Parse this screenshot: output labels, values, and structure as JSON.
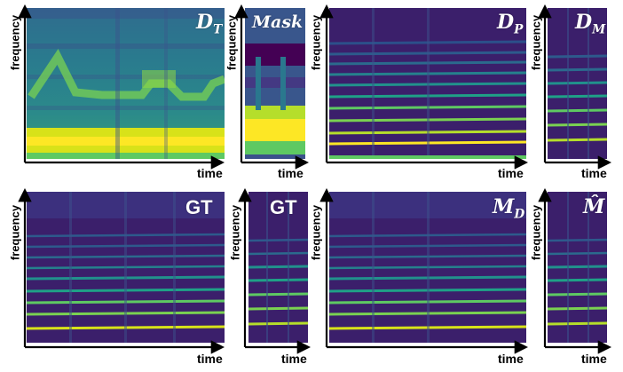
{
  "colors": {
    "background": "#440154",
    "dark": "#3b1f6b",
    "blue": "#33638d",
    "teal": "#21918c",
    "green": "#5ec962",
    "yellow": "#fde725"
  },
  "axis_labels": {
    "y": "frequency",
    "x": "time"
  },
  "panels": [
    {
      "id": "dt",
      "title_main": "D",
      "title_sub": "T",
      "title_style": "serif"
    },
    {
      "id": "mask",
      "title_main": "Mask",
      "title_sub": "",
      "title_style": "serif"
    },
    {
      "id": "dp",
      "title_main": "D",
      "title_sub": "P",
      "title_style": "serif"
    },
    {
      "id": "dm",
      "title_main": "D",
      "title_sub": "M",
      "title_style": "serif"
    },
    {
      "id": "gt1",
      "title_main": "GT",
      "title_sub": "",
      "title_style": "sans"
    },
    {
      "id": "gt2",
      "title_main": "GT",
      "title_sub": "",
      "title_style": "sans"
    },
    {
      "id": "md",
      "title_main": "M",
      "title_sub": "D",
      "title_style": "serif"
    },
    {
      "id": "mhat",
      "title_main": "M̂",
      "title_sub": "",
      "title_style": "serif"
    }
  ]
}
